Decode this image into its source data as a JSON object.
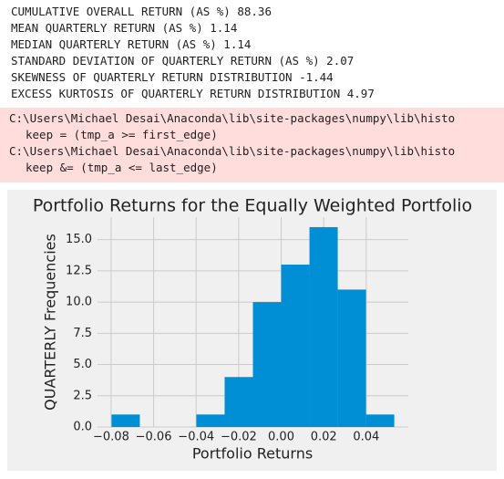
{
  "output_lines": [
    "CUMULATIVE OVERALL RETURN (AS %) 88.36",
    "MEAN QUARTERLY RETURN (AS %) 1.14",
    "MEDIAN QUARTERLY RETURN (AS %) 1.14",
    "STANDARD DEVIATION OF QUARTERLY RETURN (AS %) 2.07",
    "SKEWNESS OF QUARTERLY RETURN DISTRIBUTION -1.44",
    "EXCESS KURTOSIS OF QUARTERLY RETURN DISTRIBUTION 4.97"
  ],
  "warning_lines": [
    "C:\\Users\\Michael Desai\\Anaconda\\lib\\site-packages\\numpy\\lib\\histo",
    "keep = (tmp_a >= first_edge)",
    "C:\\Users\\Michael Desai\\Anaconda\\lib\\site-packages\\numpy\\lib\\histo",
    "keep &= (tmp_a <= last_edge)"
  ],
  "chart_data": {
    "type": "histogram",
    "title": "Portfolio Returns for the Equally Weighted Portfolio",
    "x_label": "Portfolio Returns",
    "y_label": "QUARTERLY Frequencies",
    "bins": [
      -0.0798,
      -0.0665,
      -0.0532,
      -0.0399,
      -0.0266,
      -0.0133,
      0.0,
      0.0133,
      0.0266,
      0.0399,
      0.0532
    ],
    "counts": [
      1,
      0,
      0,
      1,
      4,
      10,
      13,
      16,
      11,
      1
    ],
    "color": "#008fd5",
    "xlim": [
      -0.0864,
      0.0598
    ],
    "ylim": [
      0,
      16.8
    ],
    "xticks": [
      {
        "value": -0.08,
        "label": "−0.08"
      },
      {
        "value": -0.06,
        "label": "−0.06"
      },
      {
        "value": -0.04,
        "label": "−0.04"
      },
      {
        "value": -0.02,
        "label": "−0.02"
      },
      {
        "value": 0,
        "label": "0.00"
      },
      0.02,
      0.04
    ],
    "yticks": [
      {
        "value": 0,
        "label": "0.0"
      },
      2.5,
      {
        "value": 5,
        "label": "5.0"
      },
      7.5,
      {
        "value": 10,
        "label": "10.0"
      },
      12.5,
      {
        "value": 15,
        "label": "15.0"
      }
    ],
    "grid": true
  }
}
